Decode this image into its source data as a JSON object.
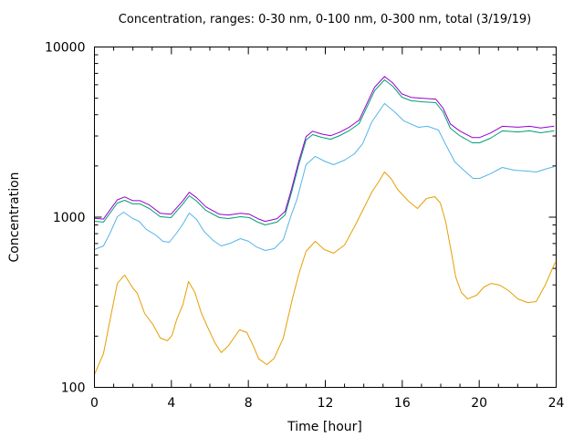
{
  "chart_data": {
    "type": "line",
    "title": "Concentration, ranges: 0-30 nm, 0-100 nm, 0-300 nm, total (3/19/19)",
    "xlabel": "Time [hour]",
    "ylabel": "Concentration",
    "xlim": [
      0,
      24
    ],
    "ylim": [
      100,
      10000
    ],
    "yscale": "log",
    "x_ticks": [
      0,
      4,
      8,
      12,
      16,
      20,
      24
    ],
    "x_tick_labels": [
      "0",
      "4",
      "8",
      "12",
      "16",
      "20",
      "24"
    ],
    "x_minor_step": 1,
    "y_ticks": [
      100,
      1000,
      10000
    ],
    "y_tick_labels": [
      "100",
      "1000",
      "10000"
    ],
    "grid": false,
    "legend": "none",
    "series": [
      {
        "name": "0-30 nm",
        "color": "#e69f00",
        "points": [
          [
            0,
            119
          ],
          [
            0.47,
            158
          ],
          [
            0.81,
            249
          ],
          [
            1.19,
            408
          ],
          [
            1.57,
            457
          ],
          [
            1.99,
            384
          ],
          [
            2.23,
            357
          ],
          [
            2.61,
            272
          ],
          [
            3.04,
            234
          ],
          [
            3.42,
            195
          ],
          [
            3.79,
            188
          ],
          [
            4.03,
            202
          ],
          [
            4.27,
            249
          ],
          [
            4.6,
            307
          ],
          [
            4.89,
            419
          ],
          [
            5.22,
            361
          ],
          [
            5.55,
            275
          ],
          [
            5.88,
            226
          ],
          [
            6.26,
            183
          ],
          [
            6.59,
            160
          ],
          [
            6.97,
            176
          ],
          [
            7.54,
            218
          ],
          [
            7.92,
            210
          ],
          [
            8.25,
            176
          ],
          [
            8.54,
            147
          ],
          [
            8.96,
            136
          ],
          [
            9.34,
            148
          ],
          [
            9.82,
            195
          ],
          [
            10.29,
            331
          ],
          [
            10.62,
            462
          ],
          [
            11.0,
            630
          ],
          [
            11.48,
            721
          ],
          [
            11.95,
            645
          ],
          [
            12.43,
            614
          ],
          [
            13.0,
            686
          ],
          [
            13.52,
            879
          ],
          [
            13.99,
            1125
          ],
          [
            14.42,
            1404
          ],
          [
            14.8,
            1629
          ],
          [
            15.08,
            1842
          ],
          [
            15.41,
            1690
          ],
          [
            15.75,
            1458
          ],
          [
            16.32,
            1242
          ],
          [
            16.79,
            1125
          ],
          [
            17.26,
            1288
          ],
          [
            17.69,
            1321
          ],
          [
            17.98,
            1211
          ],
          [
            18.26,
            935
          ],
          [
            18.59,
            592
          ],
          [
            18.78,
            445
          ],
          [
            19.07,
            361
          ],
          [
            19.4,
            331
          ],
          [
            19.87,
            348
          ],
          [
            20.25,
            389
          ],
          [
            20.63,
            408
          ],
          [
            21.06,
            399
          ],
          [
            21.53,
            370
          ],
          [
            22.01,
            331
          ],
          [
            22.53,
            315
          ],
          [
            22.96,
            319
          ],
          [
            23.43,
            399
          ],
          [
            23.95,
            543
          ]
        ]
      },
      {
        "name": "0-100 nm",
        "color": "#56b4e9",
        "points": [
          [
            0,
            645
          ],
          [
            0.47,
            678
          ],
          [
            0.81,
            806
          ],
          [
            1.19,
            1006
          ],
          [
            1.52,
            1070
          ],
          [
            1.99,
            982
          ],
          [
            2.32,
            946
          ],
          [
            2.7,
            847
          ],
          [
            3.18,
            786
          ],
          [
            3.56,
            721
          ],
          [
            3.89,
            712
          ],
          [
            4.27,
            806
          ],
          [
            4.6,
            912
          ],
          [
            4.93,
            1057
          ],
          [
            5.31,
            970
          ],
          [
            5.69,
            826
          ],
          [
            6.17,
            730
          ],
          [
            6.59,
            678
          ],
          [
            7.07,
            703
          ],
          [
            7.59,
            748
          ],
          [
            8.02,
            721
          ],
          [
            8.4,
            670
          ],
          [
            8.87,
            637
          ],
          [
            9.34,
            653
          ],
          [
            9.82,
            739
          ],
          [
            10.25,
            1045
          ],
          [
            10.53,
            1273
          ],
          [
            11.0,
            2033
          ],
          [
            11.48,
            2275
          ],
          [
            11.95,
            2138
          ],
          [
            12.43,
            2033
          ],
          [
            13.0,
            2163
          ],
          [
            13.52,
            2360
          ],
          [
            13.94,
            2704
          ],
          [
            14.42,
            3631
          ],
          [
            15.08,
            4656
          ],
          [
            15.6,
            4159
          ],
          [
            16.08,
            3681
          ],
          [
            16.84,
            3373
          ],
          [
            17.31,
            3420
          ],
          [
            17.88,
            3251
          ],
          [
            18.26,
            2667
          ],
          [
            18.74,
            2109
          ],
          [
            19.3,
            1842
          ],
          [
            19.68,
            1690
          ],
          [
            20.02,
            1690
          ],
          [
            20.58,
            1799
          ],
          [
            21.2,
            1959
          ],
          [
            21.82,
            1888
          ],
          [
            22.48,
            1866
          ],
          [
            22.96,
            1842
          ],
          [
            23.57,
            1936
          ],
          [
            23.95,
            1986
          ]
        ]
      },
      {
        "name": "0-300 nm",
        "color": "#009e73",
        "points": [
          [
            0,
            946
          ],
          [
            0.47,
            935
          ],
          [
            0.81,
            1057
          ],
          [
            1.19,
            1211
          ],
          [
            1.57,
            1257
          ],
          [
            1.99,
            1197
          ],
          [
            2.37,
            1197
          ],
          [
            2.85,
            1125
          ],
          [
            3.42,
            1006
          ],
          [
            3.98,
            994
          ],
          [
            4.6,
            1197
          ],
          [
            4.93,
            1337
          ],
          [
            5.31,
            1242
          ],
          [
            5.79,
            1096
          ],
          [
            6.5,
            994
          ],
          [
            6.97,
            982
          ],
          [
            7.59,
            1006
          ],
          [
            8.06,
            994
          ],
          [
            8.49,
            935
          ],
          [
            8.87,
            900
          ],
          [
            9.49,
            935
          ],
          [
            9.91,
            1031
          ],
          [
            10.25,
            1404
          ],
          [
            10.62,
            2033
          ],
          [
            11.0,
            2838
          ],
          [
            11.34,
            3055
          ],
          [
            11.81,
            2944
          ],
          [
            12.28,
            2871
          ],
          [
            12.76,
            3020
          ],
          [
            13.23,
            3214
          ],
          [
            13.76,
            3548
          ],
          [
            14.09,
            4266
          ],
          [
            14.56,
            5534
          ],
          [
            15.08,
            6412
          ],
          [
            15.51,
            5875
          ],
          [
            15.98,
            5070
          ],
          [
            16.46,
            4831
          ],
          [
            17.08,
            4764
          ],
          [
            17.74,
            4710
          ],
          [
            18.12,
            4159
          ],
          [
            18.5,
            3334
          ],
          [
            18.97,
            3020
          ],
          [
            19.64,
            2735
          ],
          [
            20.02,
            2735
          ],
          [
            20.58,
            2911
          ],
          [
            21.2,
            3214
          ],
          [
            22.01,
            3170
          ],
          [
            22.62,
            3214
          ],
          [
            23.19,
            3133
          ],
          [
            23.9,
            3214
          ]
        ]
      },
      {
        "name": "total",
        "color": "#9400d3",
        "points": [
          [
            0,
            985
          ],
          [
            0.47,
            975
          ],
          [
            0.81,
            1105
          ],
          [
            1.19,
            1265
          ],
          [
            1.57,
            1315
          ],
          [
            1.99,
            1250
          ],
          [
            2.37,
            1250
          ],
          [
            2.85,
            1180
          ],
          [
            3.42,
            1055
          ],
          [
            3.98,
            1040
          ],
          [
            4.6,
            1250
          ],
          [
            4.93,
            1400
          ],
          [
            5.31,
            1300
          ],
          [
            5.79,
            1150
          ],
          [
            6.5,
            1040
          ],
          [
            6.97,
            1030
          ],
          [
            7.59,
            1055
          ],
          [
            8.06,
            1040
          ],
          [
            8.49,
            980
          ],
          [
            8.87,
            945
          ],
          [
            9.49,
            980
          ],
          [
            9.91,
            1080
          ],
          [
            10.25,
            1470
          ],
          [
            10.62,
            2130
          ],
          [
            11.0,
            2970
          ],
          [
            11.34,
            3200
          ],
          [
            11.81,
            3080
          ],
          [
            12.28,
            3010
          ],
          [
            12.76,
            3160
          ],
          [
            13.23,
            3370
          ],
          [
            13.76,
            3720
          ],
          [
            14.09,
            4470
          ],
          [
            14.56,
            5800
          ],
          [
            15.08,
            6700
          ],
          [
            15.51,
            6150
          ],
          [
            15.98,
            5300
          ],
          [
            16.46,
            5060
          ],
          [
            17.08,
            4990
          ],
          [
            17.74,
            4940
          ],
          [
            18.12,
            4380
          ],
          [
            18.5,
            3530
          ],
          [
            18.97,
            3220
          ],
          [
            19.64,
            2940
          ],
          [
            20.02,
            2940
          ],
          [
            20.58,
            3120
          ],
          [
            21.2,
            3420
          ],
          [
            22.01,
            3380
          ],
          [
            22.62,
            3420
          ],
          [
            23.19,
            3340
          ],
          [
            23.9,
            3430
          ]
        ]
      }
    ]
  }
}
